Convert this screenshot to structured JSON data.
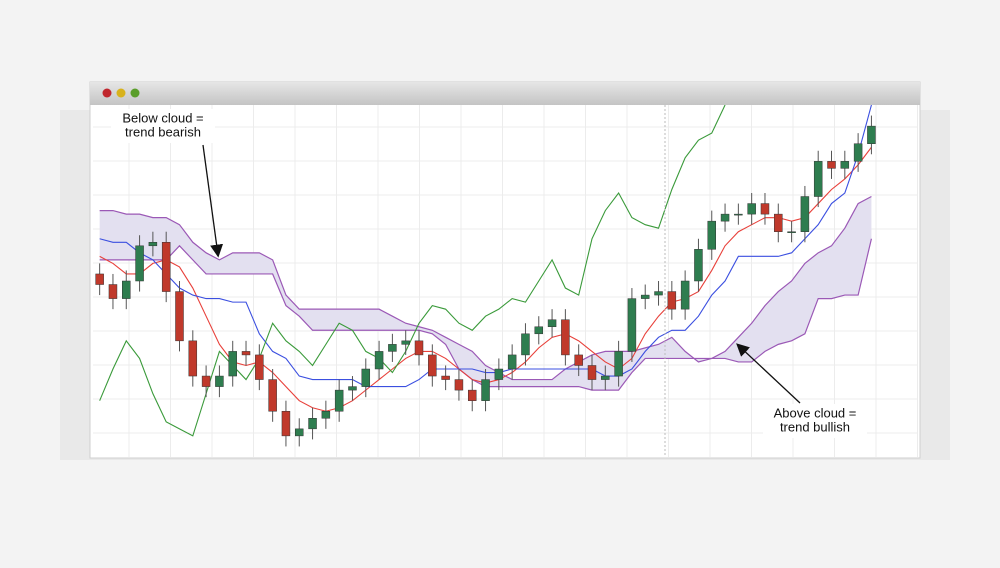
{
  "chart_data": {
    "type": "candlestick",
    "ylim": [
      0,
      100
    ],
    "up_color": "#2e7d4f",
    "down_color": "#c0392b",
    "open": [
      52,
      49,
      45,
      50,
      60,
      61,
      47,
      33,
      23,
      20,
      23,
      30,
      29,
      22,
      13,
      6,
      8,
      11,
      13,
      19,
      20,
      25,
      30,
      32,
      33,
      29,
      23,
      22,
      19,
      16,
      22,
      25,
      29,
      35,
      37,
      39,
      29,
      26,
      22,
      23,
      30,
      45,
      46,
      47,
      42,
      50,
      59,
      67,
      69,
      69,
      72,
      69,
      64,
      64,
      74,
      84,
      82,
      84,
      89
    ],
    "high": [
      55,
      52,
      53,
      63,
      64,
      64,
      50,
      36,
      26,
      26,
      33,
      33,
      32,
      25,
      16,
      11,
      14,
      16,
      22,
      23,
      28,
      33,
      35,
      36,
      36,
      32,
      26,
      25,
      22,
      25,
      28,
      32,
      38,
      40,
      42,
      42,
      32,
      29,
      26,
      33,
      48,
      49,
      50,
      50,
      53,
      62,
      70,
      72,
      72,
      75,
      75,
      72,
      67,
      77,
      87,
      87,
      87,
      92,
      97
    ],
    "low": [
      46,
      42,
      42,
      47,
      57,
      44,
      30,
      20,
      17,
      17,
      20,
      26,
      19,
      10,
      3,
      3,
      5,
      8,
      10,
      16,
      17,
      22,
      27,
      29,
      26,
      20,
      19,
      16,
      13,
      13,
      19,
      22,
      26,
      32,
      34,
      26,
      23,
      19,
      19,
      20,
      27,
      42,
      43,
      39,
      39,
      47,
      56,
      64,
      66,
      66,
      66,
      61,
      61,
      61,
      71,
      79,
      79,
      81,
      86
    ],
    "close": [
      49,
      45,
      50,
      60,
      61,
      47,
      33,
      23,
      20,
      23,
      30,
      29,
      22,
      13,
      6,
      8,
      11,
      13,
      19,
      20,
      25,
      30,
      32,
      33,
      29,
      23,
      22,
      19,
      16,
      22,
      25,
      29,
      35,
      37,
      39,
      29,
      26,
      22,
      23,
      30,
      45,
      46,
      47,
      42,
      50,
      59,
      67,
      69,
      69,
      72,
      69,
      64,
      64,
      74,
      84,
      82,
      84,
      89,
      94
    ],
    "lines": [
      {
        "color": "#e8403a",
        "values": [
          57,
          55,
          52,
          52,
          55,
          56,
          54,
          48,
          40,
          32,
          27,
          26,
          27,
          24,
          20,
          16,
          14,
          13,
          14,
          16,
          19,
          22,
          25,
          28,
          30,
          30,
          28,
          25,
          22,
          21,
          22,
          24,
          27,
          31,
          34,
          35,
          33,
          30,
          27,
          25,
          28,
          35,
          40,
          44,
          45,
          47,
          53,
          60,
          64,
          66,
          68,
          68,
          67,
          68,
          72,
          76,
          79,
          83,
          88
        ]
      },
      {
        "color": "#3b4fe0",
        "values": [
          62,
          61,
          61,
          58,
          56,
          52,
          48,
          46,
          45,
          45,
          44,
          44,
          35,
          30,
          28,
          23,
          22,
          22,
          22,
          22,
          20,
          20,
          20,
          20,
          22,
          25,
          25,
          25,
          25,
          24,
          24,
          25,
          25,
          25,
          25,
          25,
          25,
          25,
          23,
          23,
          25,
          30,
          34,
          36,
          36,
          40,
          46,
          50,
          57,
          57,
          57,
          57,
          58,
          62,
          66,
          72,
          75,
          86,
          100
        ]
      },
      {
        "color": "#3a9a3a",
        "values": [
          16,
          25,
          33,
          28,
          18,
          10,
          8,
          6,
          18,
          30,
          26,
          22,
          28,
          38,
          33,
          30,
          26,
          32,
          38,
          36,
          30,
          28,
          24,
          30,
          38,
          43,
          42,
          38,
          36,
          40,
          42,
          45,
          44,
          50,
          56,
          48,
          46,
          62,
          70,
          75,
          68,
          66,
          65,
          76,
          85,
          90,
          92,
          100,
          null,
          null,
          null,
          null,
          null,
          null,
          null,
          null,
          null,
          null,
          null
        ]
      }
    ],
    "cloud": {
      "color": "#9b59b6",
      "fill": "#e3e0f0",
      "span_a": [
        70,
        70,
        69,
        69,
        68,
        68,
        66,
        61,
        58,
        56,
        58,
        58,
        58,
        56,
        46,
        42,
        42,
        42,
        42,
        42,
        42,
        42,
        40,
        38,
        37,
        36,
        34,
        32,
        30,
        26,
        24,
        22,
        22,
        22,
        22,
        25,
        27,
        29,
        30,
        30,
        30,
        31,
        32,
        34,
        30,
        27,
        28,
        30,
        34,
        38,
        43,
        47,
        50,
        55,
        58,
        60,
        65,
        72,
        74
      ],
      "span_b": [
        56,
        56,
        56,
        56,
        56,
        56,
        60,
        56,
        52,
        52,
        52,
        52,
        52,
        52,
        43,
        40,
        36,
        36,
        36,
        36,
        36,
        36,
        36,
        36,
        36,
        35,
        32,
        25,
        22,
        20,
        20,
        20,
        20,
        20,
        20,
        20,
        20,
        19,
        19,
        19,
        24,
        28,
        28,
        28,
        28,
        28,
        28,
        28,
        27,
        27,
        30,
        32,
        33,
        35,
        45,
        45,
        46,
        46,
        62
      ]
    },
    "annotations": [
      {
        "lines": [
          "Below cloud =",
          "trend bearish"
        ]
      },
      {
        "lines": [
          "Above cloud =",
          "trend bullish"
        ]
      }
    ]
  }
}
